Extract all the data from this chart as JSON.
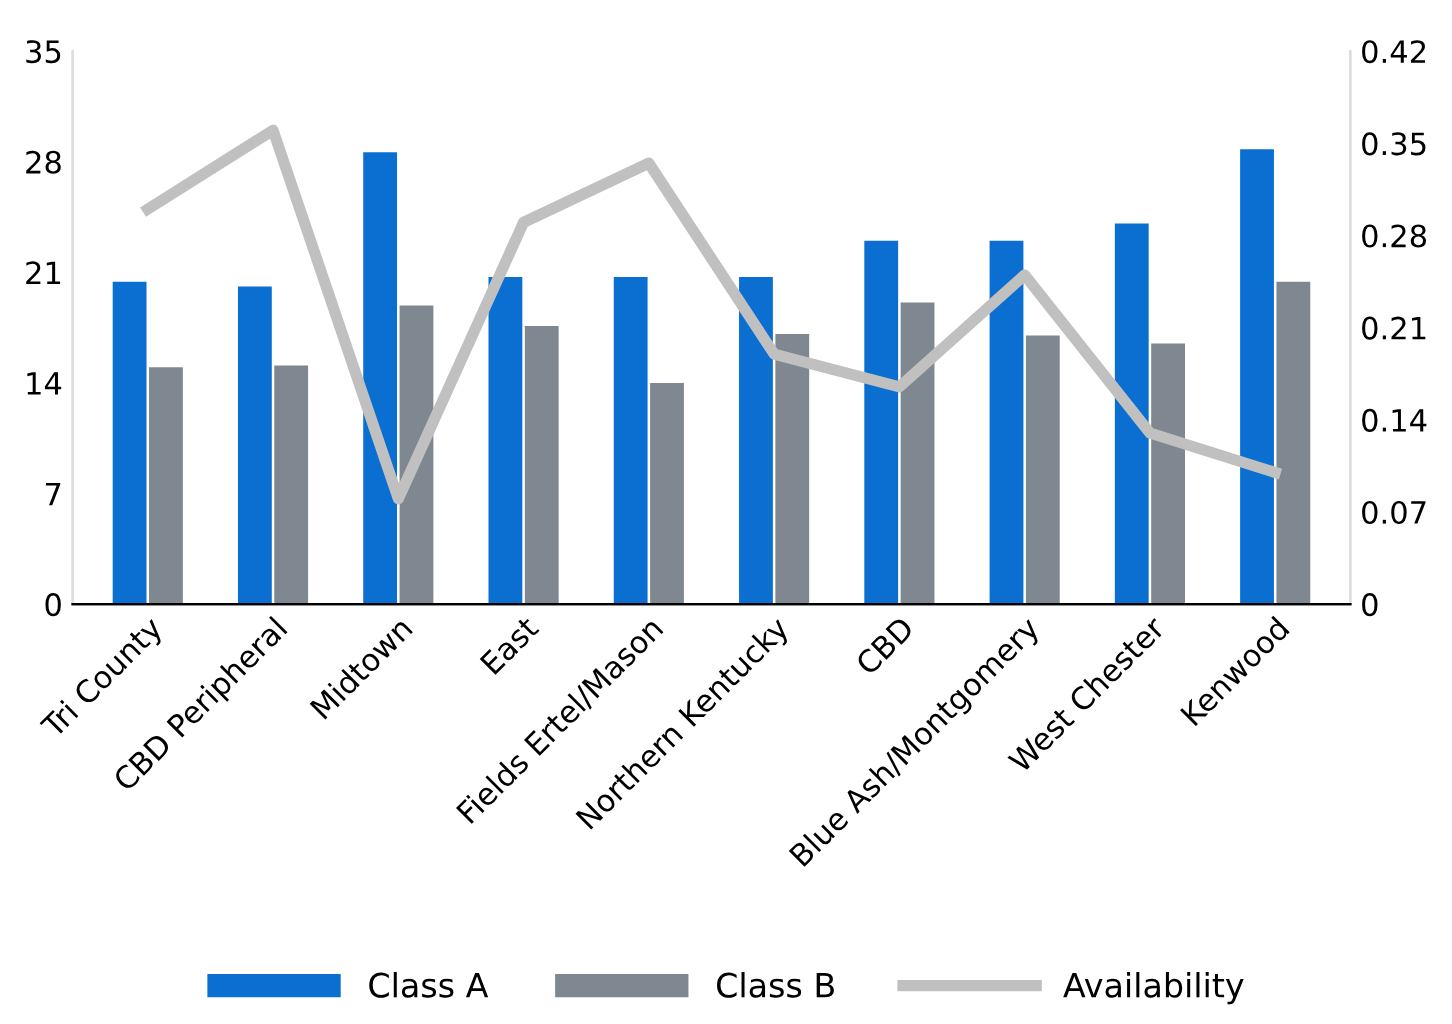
{
  "chart_data": {
    "type": "bar",
    "categories": [
      "Tri County",
      "CBD Peripheral",
      "Midtown",
      "East",
      "Fields Ertel/Mason",
      "Northern Kentucky",
      "CBD",
      "Blue Ash/Montgomery",
      "West Chester",
      "Kenwood"
    ],
    "series": [
      {
        "name": "Class A",
        "color": "#0a6fd0",
        "values": [
          20.4,
          20.1,
          28.6,
          20.7,
          20.7,
          20.7,
          23.0,
          23.0,
          24.1,
          28.8
        ]
      },
      {
        "name": "Class B",
        "color": "#7f8890",
        "values": [
          15.0,
          15.1,
          18.9,
          17.6,
          14.0,
          17.1,
          19.1,
          17.0,
          16.5,
          20.4
        ]
      },
      {
        "name": "Availability",
        "type": "line",
        "axis": "y2",
        "color": "#c0c0c0",
        "values": [
          0.3,
          0.36,
          0.08,
          0.29,
          0.335,
          0.19,
          0.165,
          0.25,
          0.13,
          0.1
        ]
      }
    ],
    "ylim": [
      0,
      35
    ],
    "yticks": [
      0,
      7,
      14,
      21,
      28,
      35
    ],
    "y2lim": [
      0,
      0.42
    ],
    "y2ticks": [
      0,
      0.07,
      0.14,
      0.21,
      0.28,
      0.35,
      0.42
    ],
    "grid": false,
    "legend": "bottom",
    "marker": "none",
    "line_style": "solid"
  }
}
